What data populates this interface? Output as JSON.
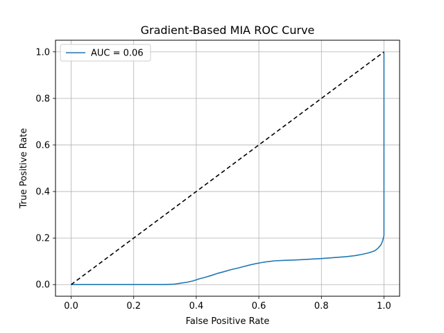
{
  "chart_data": {
    "type": "line",
    "title": "Gradient-Based MIA ROC Curve",
    "xlabel": "False Positive Rate",
    "ylabel": "True Positive Rate",
    "xlim": [
      -0.05,
      1.05
    ],
    "ylim": [
      -0.05,
      1.05
    ],
    "xticks": [
      0.0,
      0.2,
      0.4,
      0.6,
      0.8,
      1.0
    ],
    "yticks": [
      0.0,
      0.2,
      0.4,
      0.6,
      0.8,
      1.0
    ],
    "xtick_labels": [
      "0.0",
      "0.2",
      "0.4",
      "0.6",
      "0.8",
      "1.0"
    ],
    "ytick_labels": [
      "0.0",
      "0.2",
      "0.4",
      "0.6",
      "0.8",
      "1.0"
    ],
    "grid": true,
    "legend_position": "upper-left",
    "series": [
      {
        "name": "AUC = 0.06",
        "color": "#1f77b4",
        "style": "solid",
        "x": [
          0.0,
          0.3,
          0.33,
          0.35,
          0.37,
          0.39,
          0.41,
          0.43,
          0.45,
          0.47,
          0.49,
          0.51,
          0.53,
          0.55,
          0.57,
          0.59,
          0.61,
          0.63,
          0.65,
          0.68,
          0.72,
          0.76,
          0.8,
          0.84,
          0.88,
          0.91,
          0.93,
          0.95,
          0.97,
          0.98,
          0.99,
          0.995,
          1.0,
          1.0,
          1.0,
          1.0
        ],
        "y": [
          0.0,
          0.0,
          0.002,
          0.006,
          0.01,
          0.016,
          0.025,
          0.032,
          0.04,
          0.049,
          0.056,
          0.064,
          0.07,
          0.077,
          0.084,
          0.09,
          0.095,
          0.099,
          0.102,
          0.104,
          0.106,
          0.109,
          0.112,
          0.116,
          0.12,
          0.125,
          0.13,
          0.136,
          0.145,
          0.155,
          0.17,
          0.185,
          0.21,
          0.3,
          0.6,
          1.0
        ]
      },
      {
        "name": "",
        "color": "#000000",
        "style": "dashed",
        "x": [
          0.0,
          1.0
        ],
        "y": [
          0.0,
          1.0
        ]
      }
    ]
  }
}
